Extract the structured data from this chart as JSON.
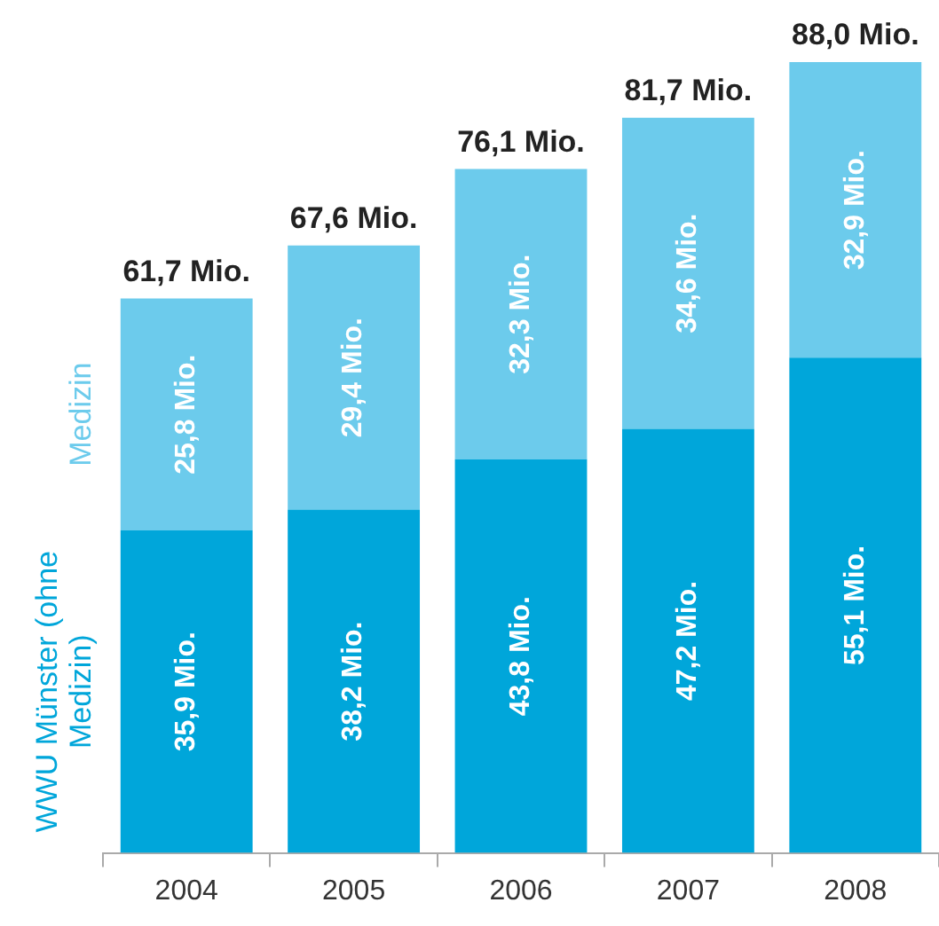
{
  "chart_data": {
    "type": "bar",
    "stacked": true,
    "categories": [
      "2004",
      "2005",
      "2006",
      "2007",
      "2008"
    ],
    "series": [
      {
        "name": "WWU Münster (ohne Medizin)",
        "color": "#00a6da",
        "values": [
          35.9,
          38.2,
          43.8,
          47.2,
          55.1
        ],
        "value_labels": [
          "35,9 Mio.",
          "38,2 Mio.",
          "43,8 Mio.",
          "47,2 Mio.",
          "55,1 Mio."
        ]
      },
      {
        "name": "Medizin",
        "color": "#6ccbec",
        "values": [
          25.8,
          29.4,
          32.3,
          34.6,
          32.9
        ],
        "value_labels": [
          "25,8 Mio.",
          "29,4 Mio.",
          "32,3 Mio.",
          "34,6 Mio.",
          "32,9 Mio."
        ]
      }
    ],
    "totals": [
      "61,7 Mio.",
      "67,6 Mio.",
      "76,1 Mio.",
      "81,7 Mio.",
      "88,0 Mio."
    ],
    "legend": "left",
    "grid": false,
    "tick_labels": "x"
  }
}
